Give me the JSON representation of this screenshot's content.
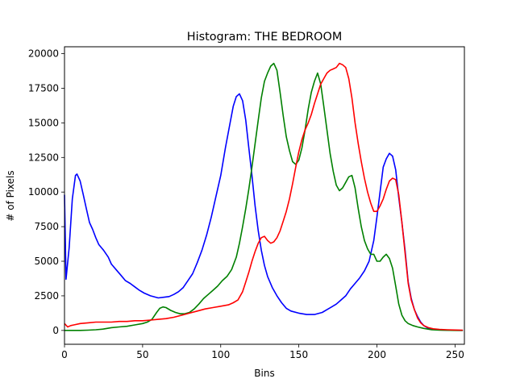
{
  "chart_data": {
    "type": "line",
    "title": "Histogram: THE BEDROOM",
    "xlabel": "Bins",
    "ylabel": "# of Pixels",
    "xlim": [
      0,
      256
    ],
    "ylim": [
      -1000,
      20500
    ],
    "xticks": [
      0,
      50,
      100,
      150,
      200,
      250
    ],
    "yticks": [
      0,
      2500,
      5000,
      7500,
      10000,
      12500,
      15000,
      17500,
      20000
    ],
    "grid": false,
    "series": [
      {
        "color": "#0000ff",
        "points": [
          [
            0,
            9800
          ],
          [
            1,
            3700
          ],
          [
            3,
            6000
          ],
          [
            5,
            9500
          ],
          [
            7,
            11200
          ],
          [
            8,
            11300
          ],
          [
            10,
            10800
          ],
          [
            12,
            9800
          ],
          [
            14,
            8800
          ],
          [
            16,
            7800
          ],
          [
            18,
            7300
          ],
          [
            20,
            6700
          ],
          [
            22,
            6200
          ],
          [
            25,
            5800
          ],
          [
            28,
            5300
          ],
          [
            30,
            4800
          ],
          [
            33,
            4400
          ],
          [
            36,
            4000
          ],
          [
            39,
            3600
          ],
          [
            42,
            3400
          ],
          [
            45,
            3150
          ],
          [
            48,
            2900
          ],
          [
            51,
            2700
          ],
          [
            55,
            2500
          ],
          [
            60,
            2350
          ],
          [
            64,
            2400
          ],
          [
            67,
            2450
          ],
          [
            70,
            2600
          ],
          [
            73,
            2800
          ],
          [
            76,
            3100
          ],
          [
            79,
            3600
          ],
          [
            82,
            4100
          ],
          [
            85,
            4900
          ],
          [
            88,
            5800
          ],
          [
            91,
            6900
          ],
          [
            94,
            8200
          ],
          [
            97,
            9700
          ],
          [
            100,
            11200
          ],
          [
            103,
            13200
          ],
          [
            106,
            15000
          ],
          [
            108,
            16200
          ],
          [
            110,
            16900
          ],
          [
            112,
            17100
          ],
          [
            114,
            16600
          ],
          [
            116,
            15200
          ],
          [
            118,
            13200
          ],
          [
            120,
            11200
          ],
          [
            122,
            9000
          ],
          [
            124,
            7200
          ],
          [
            126,
            5800
          ],
          [
            128,
            4700
          ],
          [
            130,
            3900
          ],
          [
            133,
            3100
          ],
          [
            136,
            2500
          ],
          [
            139,
            2000
          ],
          [
            142,
            1600
          ],
          [
            145,
            1400
          ],
          [
            150,
            1250
          ],
          [
            155,
            1150
          ],
          [
            160,
            1150
          ],
          [
            165,
            1300
          ],
          [
            168,
            1500
          ],
          [
            171,
            1700
          ],
          [
            174,
            1900
          ],
          [
            177,
            2200
          ],
          [
            180,
            2500
          ],
          [
            183,
            3000
          ],
          [
            186,
            3400
          ],
          [
            189,
            3800
          ],
          [
            192,
            4300
          ],
          [
            195,
            5000
          ],
          [
            198,
            6500
          ],
          [
            200,
            8200
          ],
          [
            202,
            10000
          ],
          [
            204,
            11800
          ],
          [
            206,
            12400
          ],
          [
            208,
            12800
          ],
          [
            210,
            12600
          ],
          [
            212,
            11600
          ],
          [
            214,
            9600
          ],
          [
            216,
            7800
          ],
          [
            218,
            5800
          ],
          [
            220,
            3500
          ],
          [
            222,
            2300
          ],
          [
            224,
            1500
          ],
          [
            226,
            1000
          ],
          [
            228,
            600
          ],
          [
            230,
            350
          ],
          [
            233,
            150
          ],
          [
            236,
            80
          ],
          [
            240,
            40
          ],
          [
            245,
            20
          ],
          [
            250,
            10
          ],
          [
            255,
            0
          ]
        ]
      },
      {
        "color": "#008000",
        "points": [
          [
            0,
            0
          ],
          [
            10,
            0
          ],
          [
            15,
            20
          ],
          [
            20,
            50
          ],
          [
            25,
            100
          ],
          [
            30,
            200
          ],
          [
            35,
            250
          ],
          [
            40,
            300
          ],
          [
            45,
            400
          ],
          [
            50,
            500
          ],
          [
            53,
            600
          ],
          [
            56,
            800
          ],
          [
            59,
            1300
          ],
          [
            61,
            1600
          ],
          [
            63,
            1700
          ],
          [
            65,
            1650
          ],
          [
            68,
            1450
          ],
          [
            71,
            1300
          ],
          [
            74,
            1200
          ],
          [
            77,
            1200
          ],
          [
            80,
            1300
          ],
          [
            83,
            1550
          ],
          [
            86,
            1900
          ],
          [
            89,
            2300
          ],
          [
            92,
            2600
          ],
          [
            95,
            2900
          ],
          [
            98,
            3200
          ],
          [
            101,
            3600
          ],
          [
            104,
            3900
          ],
          [
            107,
            4400
          ],
          [
            110,
            5300
          ],
          [
            112,
            6300
          ],
          [
            114,
            7500
          ],
          [
            116,
            8800
          ],
          [
            118,
            10200
          ],
          [
            120,
            11800
          ],
          [
            122,
            13500
          ],
          [
            124,
            15200
          ],
          [
            126,
            16800
          ],
          [
            128,
            18000
          ],
          [
            130,
            18600
          ],
          [
            132,
            19100
          ],
          [
            134,
            19300
          ],
          [
            136,
            18800
          ],
          [
            138,
            17200
          ],
          [
            140,
            15500
          ],
          [
            142,
            14000
          ],
          [
            144,
            13000
          ],
          [
            146,
            12200
          ],
          [
            148,
            12000
          ],
          [
            150,
            12300
          ],
          [
            152,
            13200
          ],
          [
            154,
            14500
          ],
          [
            156,
            16000
          ],
          [
            158,
            17200
          ],
          [
            160,
            18000
          ],
          [
            162,
            18600
          ],
          [
            164,
            17800
          ],
          [
            166,
            16200
          ],
          [
            168,
            14500
          ],
          [
            170,
            12800
          ],
          [
            172,
            11500
          ],
          [
            174,
            10500
          ],
          [
            176,
            10100
          ],
          [
            178,
            10300
          ],
          [
            180,
            10700
          ],
          [
            182,
            11100
          ],
          [
            184,
            11200
          ],
          [
            186,
            10300
          ],
          [
            188,
            8800
          ],
          [
            190,
            7500
          ],
          [
            192,
            6500
          ],
          [
            194,
            5900
          ],
          [
            196,
            5500
          ],
          [
            198,
            5500
          ],
          [
            200,
            5000
          ],
          [
            202,
            5000
          ],
          [
            204,
            5300
          ],
          [
            206,
            5500
          ],
          [
            208,
            5200
          ],
          [
            210,
            4500
          ],
          [
            212,
            3200
          ],
          [
            214,
            1900
          ],
          [
            216,
            1100
          ],
          [
            218,
            700
          ],
          [
            220,
            500
          ],
          [
            223,
            350
          ],
          [
            226,
            250
          ],
          [
            230,
            150
          ],
          [
            235,
            50
          ],
          [
            240,
            20
          ],
          [
            250,
            0
          ],
          [
            255,
            0
          ]
        ]
      },
      {
        "color": "#ff0000",
        "points": [
          [
            0,
            500
          ],
          [
            2,
            250
          ],
          [
            4,
            350
          ],
          [
            6,
            400
          ],
          [
            10,
            500
          ],
          [
            15,
            550
          ],
          [
            20,
            600
          ],
          [
            25,
            600
          ],
          [
            30,
            600
          ],
          [
            35,
            650
          ],
          [
            40,
            650
          ],
          [
            45,
            700
          ],
          [
            50,
            700
          ],
          [
            55,
            750
          ],
          [
            60,
            800
          ],
          [
            65,
            850
          ],
          [
            70,
            950
          ],
          [
            75,
            1100
          ],
          [
            80,
            1250
          ],
          [
            85,
            1400
          ],
          [
            90,
            1550
          ],
          [
            95,
            1650
          ],
          [
            100,
            1750
          ],
          [
            105,
            1850
          ],
          [
            108,
            2000
          ],
          [
            111,
            2200
          ],
          [
            114,
            2800
          ],
          [
            116,
            3500
          ],
          [
            118,
            4200
          ],
          [
            120,
            5000
          ],
          [
            122,
            5700
          ],
          [
            124,
            6300
          ],
          [
            126,
            6700
          ],
          [
            128,
            6800
          ],
          [
            130,
            6500
          ],
          [
            132,
            6300
          ],
          [
            134,
            6400
          ],
          [
            136,
            6700
          ],
          [
            138,
            7200
          ],
          [
            140,
            7900
          ],
          [
            142,
            8600
          ],
          [
            144,
            9500
          ],
          [
            146,
            10600
          ],
          [
            148,
            11800
          ],
          [
            150,
            12900
          ],
          [
            152,
            13800
          ],
          [
            154,
            14500
          ],
          [
            156,
            15000
          ],
          [
            158,
            15600
          ],
          [
            160,
            16400
          ],
          [
            162,
            17100
          ],
          [
            164,
            17800
          ],
          [
            166,
            18200
          ],
          [
            168,
            18600
          ],
          [
            170,
            18800
          ],
          [
            172,
            18900
          ],
          [
            174,
            19000
          ],
          [
            176,
            19300
          ],
          [
            178,
            19200
          ],
          [
            180,
            19000
          ],
          [
            182,
            18200
          ],
          [
            184,
            16800
          ],
          [
            186,
            15000
          ],
          [
            188,
            13500
          ],
          [
            190,
            12200
          ],
          [
            192,
            11000
          ],
          [
            194,
            10000
          ],
          [
            196,
            9200
          ],
          [
            198,
            8600
          ],
          [
            200,
            8600
          ],
          [
            202,
            9000
          ],
          [
            204,
            9500
          ],
          [
            206,
            10200
          ],
          [
            208,
            10800
          ],
          [
            210,
            11000
          ],
          [
            212,
            10900
          ],
          [
            214,
            9800
          ],
          [
            216,
            7800
          ],
          [
            218,
            5600
          ],
          [
            220,
            3400
          ],
          [
            222,
            2200
          ],
          [
            224,
            1500
          ],
          [
            226,
            900
          ],
          [
            228,
            550
          ],
          [
            230,
            350
          ],
          [
            233,
            200
          ],
          [
            236,
            120
          ],
          [
            240,
            80
          ],
          [
            245,
            50
          ],
          [
            250,
            30
          ],
          [
            255,
            20
          ]
        ]
      }
    ]
  }
}
